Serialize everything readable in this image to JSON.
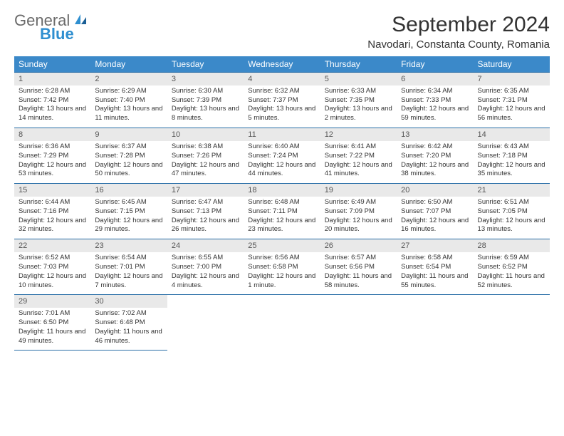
{
  "logo": {
    "general": "General",
    "blue": "Blue"
  },
  "title": "September 2024",
  "location": "Navodari, Constanta County, Romania",
  "colors": {
    "header_bg": "#3b89c9",
    "header_text": "#ffffff",
    "daynum_bg": "#e9e9e9",
    "border": "#2a6fa8",
    "logo_general": "#6b6b6b",
    "logo_blue": "#2f8fd0"
  },
  "day_headers": [
    "Sunday",
    "Monday",
    "Tuesday",
    "Wednesday",
    "Thursday",
    "Friday",
    "Saturday"
  ],
  "weeks": [
    [
      {
        "n": "1",
        "sr": "Sunrise: 6:28 AM",
        "ss": "Sunset: 7:42 PM",
        "dl": "Daylight: 13 hours and 14 minutes."
      },
      {
        "n": "2",
        "sr": "Sunrise: 6:29 AM",
        "ss": "Sunset: 7:40 PM",
        "dl": "Daylight: 13 hours and 11 minutes."
      },
      {
        "n": "3",
        "sr": "Sunrise: 6:30 AM",
        "ss": "Sunset: 7:39 PM",
        "dl": "Daylight: 13 hours and 8 minutes."
      },
      {
        "n": "4",
        "sr": "Sunrise: 6:32 AM",
        "ss": "Sunset: 7:37 PM",
        "dl": "Daylight: 13 hours and 5 minutes."
      },
      {
        "n": "5",
        "sr": "Sunrise: 6:33 AM",
        "ss": "Sunset: 7:35 PM",
        "dl": "Daylight: 13 hours and 2 minutes."
      },
      {
        "n": "6",
        "sr": "Sunrise: 6:34 AM",
        "ss": "Sunset: 7:33 PM",
        "dl": "Daylight: 12 hours and 59 minutes."
      },
      {
        "n": "7",
        "sr": "Sunrise: 6:35 AM",
        "ss": "Sunset: 7:31 PM",
        "dl": "Daylight: 12 hours and 56 minutes."
      }
    ],
    [
      {
        "n": "8",
        "sr": "Sunrise: 6:36 AM",
        "ss": "Sunset: 7:29 PM",
        "dl": "Daylight: 12 hours and 53 minutes."
      },
      {
        "n": "9",
        "sr": "Sunrise: 6:37 AM",
        "ss": "Sunset: 7:28 PM",
        "dl": "Daylight: 12 hours and 50 minutes."
      },
      {
        "n": "10",
        "sr": "Sunrise: 6:38 AM",
        "ss": "Sunset: 7:26 PM",
        "dl": "Daylight: 12 hours and 47 minutes."
      },
      {
        "n": "11",
        "sr": "Sunrise: 6:40 AM",
        "ss": "Sunset: 7:24 PM",
        "dl": "Daylight: 12 hours and 44 minutes."
      },
      {
        "n": "12",
        "sr": "Sunrise: 6:41 AM",
        "ss": "Sunset: 7:22 PM",
        "dl": "Daylight: 12 hours and 41 minutes."
      },
      {
        "n": "13",
        "sr": "Sunrise: 6:42 AM",
        "ss": "Sunset: 7:20 PM",
        "dl": "Daylight: 12 hours and 38 minutes."
      },
      {
        "n": "14",
        "sr": "Sunrise: 6:43 AM",
        "ss": "Sunset: 7:18 PM",
        "dl": "Daylight: 12 hours and 35 minutes."
      }
    ],
    [
      {
        "n": "15",
        "sr": "Sunrise: 6:44 AM",
        "ss": "Sunset: 7:16 PM",
        "dl": "Daylight: 12 hours and 32 minutes."
      },
      {
        "n": "16",
        "sr": "Sunrise: 6:45 AM",
        "ss": "Sunset: 7:15 PM",
        "dl": "Daylight: 12 hours and 29 minutes."
      },
      {
        "n": "17",
        "sr": "Sunrise: 6:47 AM",
        "ss": "Sunset: 7:13 PM",
        "dl": "Daylight: 12 hours and 26 minutes."
      },
      {
        "n": "18",
        "sr": "Sunrise: 6:48 AM",
        "ss": "Sunset: 7:11 PM",
        "dl": "Daylight: 12 hours and 23 minutes."
      },
      {
        "n": "19",
        "sr": "Sunrise: 6:49 AM",
        "ss": "Sunset: 7:09 PM",
        "dl": "Daylight: 12 hours and 20 minutes."
      },
      {
        "n": "20",
        "sr": "Sunrise: 6:50 AM",
        "ss": "Sunset: 7:07 PM",
        "dl": "Daylight: 12 hours and 16 minutes."
      },
      {
        "n": "21",
        "sr": "Sunrise: 6:51 AM",
        "ss": "Sunset: 7:05 PM",
        "dl": "Daylight: 12 hours and 13 minutes."
      }
    ],
    [
      {
        "n": "22",
        "sr": "Sunrise: 6:52 AM",
        "ss": "Sunset: 7:03 PM",
        "dl": "Daylight: 12 hours and 10 minutes."
      },
      {
        "n": "23",
        "sr": "Sunrise: 6:54 AM",
        "ss": "Sunset: 7:01 PM",
        "dl": "Daylight: 12 hours and 7 minutes."
      },
      {
        "n": "24",
        "sr": "Sunrise: 6:55 AM",
        "ss": "Sunset: 7:00 PM",
        "dl": "Daylight: 12 hours and 4 minutes."
      },
      {
        "n": "25",
        "sr": "Sunrise: 6:56 AM",
        "ss": "Sunset: 6:58 PM",
        "dl": "Daylight: 12 hours and 1 minute."
      },
      {
        "n": "26",
        "sr": "Sunrise: 6:57 AM",
        "ss": "Sunset: 6:56 PM",
        "dl": "Daylight: 11 hours and 58 minutes."
      },
      {
        "n": "27",
        "sr": "Sunrise: 6:58 AM",
        "ss": "Sunset: 6:54 PM",
        "dl": "Daylight: 11 hours and 55 minutes."
      },
      {
        "n": "28",
        "sr": "Sunrise: 6:59 AM",
        "ss": "Sunset: 6:52 PM",
        "dl": "Daylight: 11 hours and 52 minutes."
      }
    ],
    [
      {
        "n": "29",
        "sr": "Sunrise: 7:01 AM",
        "ss": "Sunset: 6:50 PM",
        "dl": "Daylight: 11 hours and 49 minutes."
      },
      {
        "n": "30",
        "sr": "Sunrise: 7:02 AM",
        "ss": "Sunset: 6:48 PM",
        "dl": "Daylight: 11 hours and 46 minutes."
      },
      null,
      null,
      null,
      null,
      null
    ]
  ]
}
